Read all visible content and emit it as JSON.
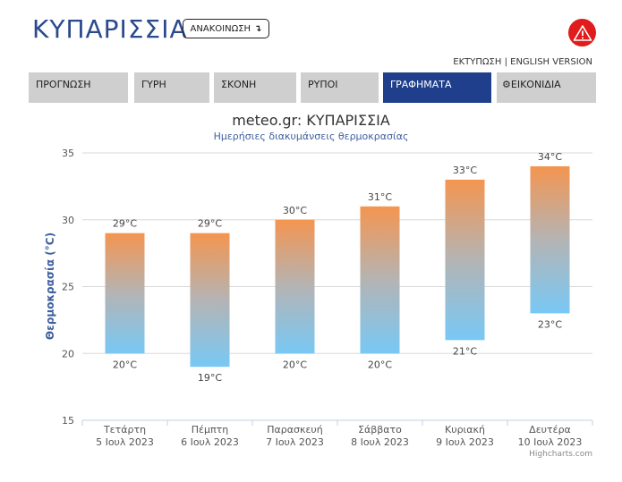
{
  "header": {
    "title": "ΚΥΠΑΡΙΣΣΙΑ",
    "announce_label": "ΑΝΑΚΟΙΝΩΣΗ",
    "announce_arrow": "↴",
    "print_label": "ΕΚΤΥΠΩΣΗ",
    "separator": " | ",
    "english_label": "ENGLISH VERSION"
  },
  "tabs": [
    {
      "label": "ΠΡΟΓΝΩΣΗ",
      "active": false
    },
    {
      "label": "ΓΥΡΗ",
      "active": false
    },
    {
      "label": "ΣΚΟΝΗ",
      "active": false
    },
    {
      "label": "ΡΥΠΟΙ",
      "active": false
    },
    {
      "label": "ΓΡΑΦΗΜΑΤΑ",
      "active": true
    },
    {
      "label": "ΕΙΚΟΝΙΔΙΑ",
      "active": false,
      "icon": "gear-icon"
    }
  ],
  "colors": {
    "brand": "#2b4a8c",
    "active_tab": "#1f3f8c",
    "tab_bg": "#cfcfcf",
    "alert": "#e01c1c",
    "bar_top": "#f49550",
    "bar_bottom": "#78c8f5"
  },
  "chart_data": {
    "type": "bar",
    "subtype": "columnrange",
    "title": "meteo.gr: ΚΥΠΑΡΙΣΣΙΑ",
    "subtitle": "Ημερήσιες διακυμάνσεις θερμοκρασίας",
    "xlabel": "",
    "ylabel": "Θερμοκρασία (°C)",
    "ylim": [
      15,
      35
    ],
    "yticks": [
      15,
      20,
      25,
      30,
      35
    ],
    "grid": true,
    "categories": [
      [
        "Τετάρτη",
        "5 Ιουλ 2023"
      ],
      [
        "Πέμπτη",
        "6 Ιουλ 2023"
      ],
      [
        "Παρασκευή",
        "7 Ιουλ 2023"
      ],
      [
        "Σάββατο",
        "8 Ιουλ 2023"
      ],
      [
        "Κυριακή",
        "9 Ιουλ 2023"
      ],
      [
        "Δευτέρα",
        "10 Ιουλ 2023"
      ]
    ],
    "series": [
      {
        "low": [
          20,
          19,
          20,
          20,
          21,
          23
        ],
        "high": [
          29,
          29,
          30,
          31,
          33,
          34
        ]
      }
    ],
    "unit": "°C",
    "credits": "Highcharts.com"
  }
}
